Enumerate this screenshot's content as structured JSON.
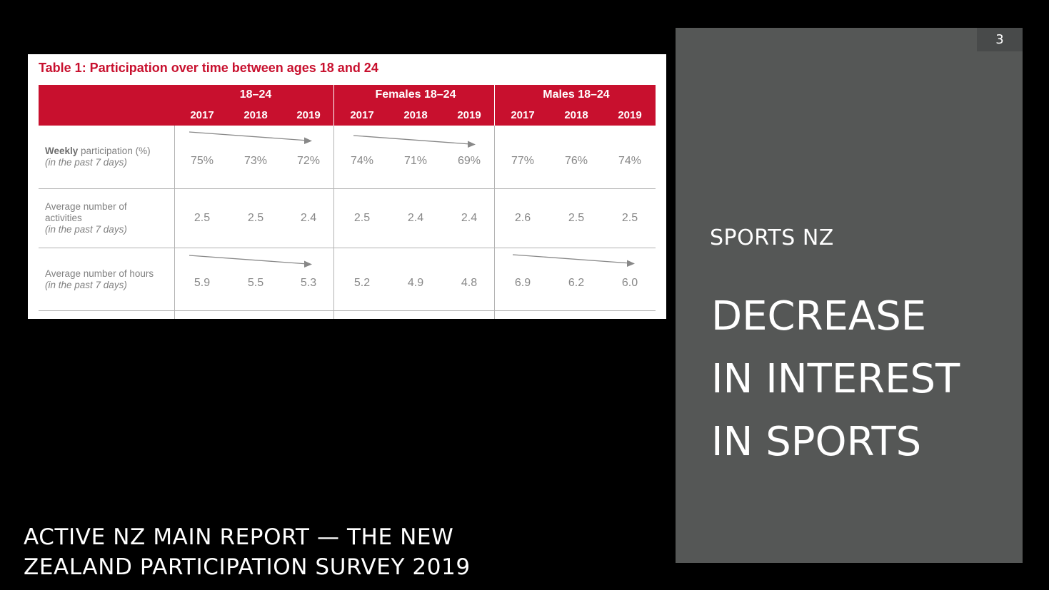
{
  "table": {
    "title": "Table 1: Participation over time between ages 18 and 24",
    "groups": [
      "18–24",
      "Females 18–24",
      "Males 18–24"
    ],
    "years": [
      "2017",
      "2018",
      "2019",
      "2017",
      "2018",
      "2019",
      "2017",
      "2018",
      "2019"
    ],
    "rows": [
      {
        "label_bold": "Weekly",
        "label_rest": " participation (%)",
        "label_note": "(in the past 7 days)",
        "values": [
          "75%",
          "73%",
          "72%",
          "74%",
          "71%",
          "69%",
          "77%",
          "76%",
          "74%"
        ]
      },
      {
        "label_bold": "",
        "label_rest": "Average number of activities",
        "label_note": "(in the past 7 days)",
        "values": [
          "2.5",
          "2.5",
          "2.4",
          "2.5",
          "2.4",
          "2.4",
          "2.6",
          "2.5",
          "2.5"
        ]
      },
      {
        "label_bold": "",
        "label_rest": "Average number of hours",
        "label_note": "(in the past 7 days)",
        "values": [
          "5.9",
          "5.5",
          "5.3",
          "5.2",
          "4.9",
          "4.8",
          "6.9",
          "6.2",
          "6.0"
        ]
      }
    ]
  },
  "panel": {
    "page_number": "3",
    "subtitle": "SPORTS NZ",
    "headline_lines": [
      "DECREASE",
      "IN INTEREST",
      "IN SPORTS"
    ]
  },
  "source": {
    "lines": [
      "ACTIVE NZ MAIN REPORT — THE NEW",
      "ZEALAND PARTICIPATION SURVEY 2019"
    ]
  },
  "colors": {
    "accent": "#c8102e",
    "panel": "#555756",
    "background": "#000000"
  }
}
